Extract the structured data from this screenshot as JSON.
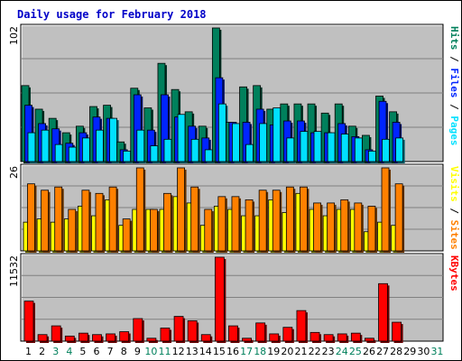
{
  "title": "Daily usage for February 2018",
  "colors": {
    "background": "#c0c0c0",
    "hits": "#00805c",
    "files": "#0024ff",
    "pages": "#00e0ff",
    "visits": "#ffff00",
    "sites": "#ff8000",
    "kbytes": "#ff0000",
    "title": "#0000c8",
    "weekend_day": "#00805c"
  },
  "chart_data": [
    {
      "type": "bar",
      "panel": "hits-files-pages",
      "y_max_label": "102",
      "ylim": [
        0,
        102
      ],
      "right_labels": [
        {
          "text": "Pages",
          "color": "#00e0ff"
        },
        {
          "text": " / ",
          "color": "#000000"
        },
        {
          "text": "Files",
          "color": "#0024ff"
        },
        {
          "text": " / ",
          "color": "#000000"
        },
        {
          "text": "Hits",
          "color": "#00805c"
        }
      ],
      "categories": [
        "1",
        "2",
        "3",
        "4",
        "5",
        "6",
        "7",
        "8",
        "9",
        "10",
        "11",
        "12",
        "13",
        "14",
        "15",
        "16",
        "17",
        "18",
        "19",
        "20",
        "21",
        "22",
        "23",
        "24",
        "25",
        "26",
        "27",
        "28",
        "29",
        "30",
        "31"
      ],
      "series": [
        {
          "name": "Hits",
          "values": [
            58,
            40,
            33,
            22,
            27,
            42,
            43,
            15,
            56,
            41,
            75,
            55,
            38,
            27,
            102,
            30,
            57,
            58,
            40,
            44,
            44,
            44,
            37,
            44,
            27,
            20,
            50,
            38,
            0,
            0,
            0
          ]
        },
        {
          "name": "Files",
          "values": [
            43,
            29,
            25,
            14,
            22,
            34,
            33,
            9,
            51,
            24,
            51,
            34,
            27,
            18,
            64,
            30,
            30,
            40,
            28,
            31,
            31,
            22,
            22,
            29,
            19,
            9,
            46,
            30,
            0,
            0,
            0
          ]
        },
        {
          "name": "Pages",
          "values": [
            22,
            24,
            13,
            11,
            18,
            24,
            33,
            8,
            24,
            12,
            17,
            36,
            17,
            9,
            44,
            29,
            13,
            29,
            41,
            18,
            23,
            23,
            22,
            21,
            18,
            8,
            17,
            18,
            0,
            0,
            0
          ]
        }
      ]
    },
    {
      "type": "bar",
      "panel": "visits-sites",
      "y_max_label": "26",
      "ylim": [
        0,
        26
      ],
      "right_labels": [
        {
          "text": "Sites",
          "color": "#ff8000"
        },
        {
          "text": " / ",
          "color": "#000000"
        },
        {
          "text": "Visits",
          "color": "#ffff00"
        }
      ],
      "categories": [
        "1",
        "2",
        "3",
        "4",
        "5",
        "6",
        "7",
        "8",
        "9",
        "10",
        "11",
        "12",
        "13",
        "14",
        "15",
        "16",
        "17",
        "18",
        "19",
        "20",
        "21",
        "22",
        "23",
        "24",
        "25",
        "26",
        "27",
        "28",
        "29",
        "30",
        "31"
      ],
      "series": [
        {
          "name": "Visits",
          "values": [
            9,
            10,
            9,
            10,
            14,
            11,
            16,
            8,
            13,
            13,
            13,
            17,
            15,
            8,
            14,
            13,
            11,
            11,
            16,
            12,
            18,
            13,
            11,
            13,
            13,
            6,
            9,
            8,
            0,
            0,
            0
          ]
        },
        {
          "name": "Sites",
          "values": [
            21,
            19,
            20,
            13,
            19,
            18,
            20,
            10,
            26,
            13,
            18,
            26,
            20,
            13,
            17,
            17,
            16,
            19,
            19,
            20,
            20,
            15,
            15,
            16,
            15,
            14,
            26,
            21,
            0,
            0,
            0
          ]
        }
      ]
    },
    {
      "type": "bar",
      "panel": "kbytes",
      "y_max_label": "11532",
      "ylim": [
        0,
        11532
      ],
      "right_labels": [
        {
          "text": "KBytes",
          "color": "#ff0000"
        }
      ],
      "categories": [
        "1",
        "2",
        "3",
        "4",
        "5",
        "6",
        "7",
        "8",
        "9",
        "10",
        "11",
        "12",
        "13",
        "14",
        "15",
        "16",
        "17",
        "18",
        "19",
        "20",
        "21",
        "22",
        "23",
        "24",
        "25",
        "26",
        "27",
        "28",
        "29",
        "30",
        "31"
      ],
      "series": [
        {
          "name": "KBytes",
          "values": [
            5500,
            900,
            2100,
            700,
            1100,
            900,
            1000,
            1300,
            3100,
            400,
            1800,
            3400,
            2800,
            900,
            11532,
            2100,
            400,
            2500,
            1000,
            1900,
            4200,
            1200,
            900,
            1000,
            1100,
            400,
            7900,
            2600,
            0,
            0,
            0
          ]
        }
      ]
    }
  ],
  "x_axis": {
    "labels": [
      "1",
      "2",
      "3",
      "4",
      "5",
      "6",
      "7",
      "8",
      "9",
      "10",
      "11",
      "12",
      "13",
      "14",
      "15",
      "16",
      "17",
      "18",
      "19",
      "20",
      "21",
      "22",
      "23",
      "24",
      "25",
      "26",
      "27",
      "28",
      "29",
      "30",
      "31"
    ],
    "weekend": [
      false,
      false,
      true,
      true,
      false,
      false,
      false,
      false,
      false,
      true,
      true,
      false,
      false,
      false,
      false,
      false,
      true,
      true,
      false,
      false,
      false,
      false,
      false,
      true,
      true,
      false,
      false,
      false,
      false,
      false,
      true
    ]
  }
}
